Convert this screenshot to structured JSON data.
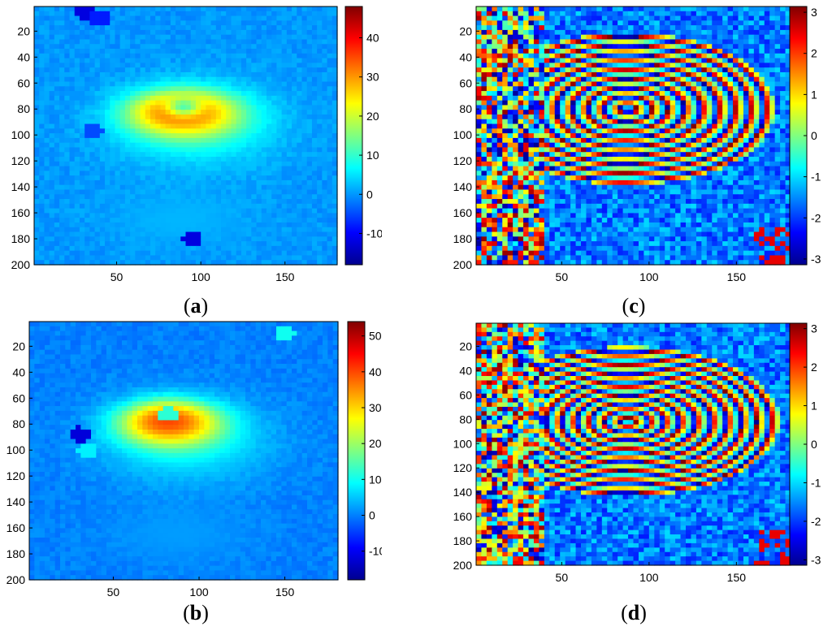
{
  "colormap": [
    "#00008f",
    "#0000ff",
    "#0080ff",
    "#00ffff",
    "#80ff80",
    "#ffff00",
    "#ff8000",
    "#ff0000",
    "#800000"
  ],
  "chart_data": [
    {
      "id": "a",
      "type": "heatmap",
      "caption_open": "(",
      "caption_letter": "a",
      "caption_close": ")",
      "xlim": [
        1,
        181
      ],
      "ylim": [
        1,
        200
      ],
      "xticks": [
        50,
        100,
        150
      ],
      "yticks": [
        20,
        40,
        60,
        80,
        100,
        120,
        140,
        160,
        180,
        200
      ],
      "clim": [
        -18,
        48
      ],
      "cticks": [
        -10,
        0,
        10,
        20,
        30,
        40
      ],
      "background_value": 0,
      "blobs": [
        {
          "x": 97,
          "y": 93,
          "rx": 60,
          "ry": 40,
          "value": 8
        },
        {
          "x": 92,
          "y": 86,
          "rx": 40,
          "ry": 22,
          "value": 22
        },
        {
          "x": 88,
          "y": 82,
          "rx": 33,
          "ry": 18,
          "value": 35
        },
        {
          "x": 90,
          "y": 78,
          "rx": 14,
          "ry": 10,
          "value": 12
        },
        {
          "x": 88,
          "y": 165,
          "rx": 55,
          "ry": 28,
          "value": 2
        }
      ],
      "spots": [
        [
          30,
          5,
          -12
        ],
        [
          36,
          98,
          -5
        ],
        [
          95,
          180,
          -12
        ],
        [
          40,
          10,
          -8
        ]
      ]
    },
    {
      "id": "b",
      "type": "heatmap",
      "caption_open": "(",
      "caption_letter": "b",
      "caption_close": ")",
      "xlim": [
        1,
        181
      ],
      "ylim": [
        1,
        200
      ],
      "xticks": [
        50,
        100,
        150
      ],
      "yticks": [
        20,
        40,
        60,
        80,
        100,
        120,
        140,
        160,
        180,
        200
      ],
      "clim": [
        -18,
        54
      ],
      "cticks": [
        -10,
        0,
        10,
        20,
        30,
        40,
        50
      ],
      "background_value": 0,
      "blobs": [
        {
          "x": 93,
          "y": 95,
          "rx": 60,
          "ry": 40,
          "value": 8
        },
        {
          "x": 85,
          "y": 82,
          "rx": 38,
          "ry": 22,
          "value": 24
        },
        {
          "x": 82,
          "y": 78,
          "rx": 30,
          "ry": 18,
          "value": 40
        },
        {
          "x": 88,
          "y": 165,
          "rx": 55,
          "ry": 28,
          "value": 2
        }
      ],
      "spots": [
        [
          30,
          88,
          -12
        ],
        [
          35,
          100,
          8
        ],
        [
          82,
          72,
          12
        ],
        [
          150,
          10,
          10
        ]
      ]
    },
    {
      "id": "c",
      "type": "heatmap",
      "caption_open": "(",
      "caption_letter": "c",
      "caption_close": ")",
      "xlim": [
        1,
        181
      ],
      "ylim": [
        1,
        200
      ],
      "xticks": [
        50,
        100,
        150
      ],
      "yticks": [
        20,
        40,
        60,
        80,
        100,
        120,
        140,
        160,
        180,
        200
      ],
      "clim": [
        -3.14,
        3.14
      ],
      "cticks": [
        -3,
        -2,
        -1,
        0,
        1,
        2,
        3
      ],
      "phase": true,
      "center": [
        88,
        80
      ],
      "radii": [
        60,
        42
      ],
      "fringes": 9
    },
    {
      "id": "d",
      "type": "heatmap",
      "caption_open": "(",
      "caption_letter": "d",
      "caption_close": ")",
      "xlim": [
        1,
        181
      ],
      "ylim": [
        1,
        200
      ],
      "xticks": [
        50,
        100,
        150
      ],
      "yticks": [
        20,
        40,
        60,
        80,
        100,
        120,
        140,
        160,
        180,
        200
      ],
      "clim": [
        -3.14,
        3.14
      ],
      "cticks": [
        -3,
        -2,
        -1,
        0,
        1,
        2,
        3
      ],
      "phase": true,
      "center": [
        88,
        82
      ],
      "radii": [
        62,
        44
      ],
      "fringes": 10
    }
  ]
}
